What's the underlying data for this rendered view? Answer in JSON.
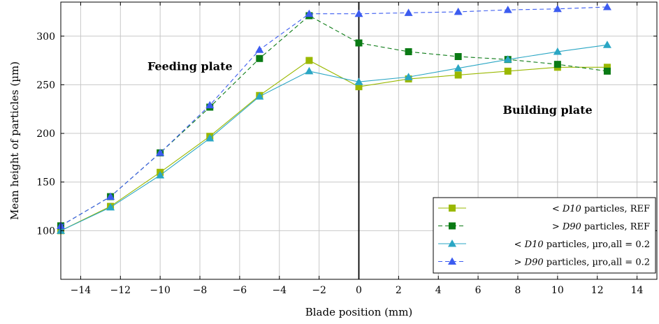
{
  "chart_data": {
    "type": "line",
    "xlabel": "Blade position (mm)",
    "ylabel": "Mean height of particles (µm)",
    "xlim": [
      -15,
      15
    ],
    "ylim": [
      50,
      335
    ],
    "xticks": [
      -14,
      -12,
      -10,
      -8,
      -6,
      -4,
      -2,
      0,
      2,
      4,
      6,
      8,
      10,
      12,
      14
    ],
    "yticks": [
      100,
      150,
      200,
      250,
      300
    ],
    "grid": true,
    "divider_x": 0,
    "legend_position": "bottom-right",
    "annotations": [
      {
        "text": "Feeding plate",
        "x": -8.5,
        "y": 265
      },
      {
        "text": "Building plate",
        "x": 9.5,
        "y": 220
      }
    ],
    "series": [
      {
        "name": "< D10 particles, REF",
        "legend_prefix": "<",
        "legend_sym": "D10",
        "legend_rest": "particles, REF",
        "color": "#9ab800",
        "dash": "none",
        "marker": "square",
        "x": [
          -15,
          -12.5,
          -10,
          -7.5,
          -5,
          -2.5,
          0,
          2.5,
          5,
          7.5,
          10,
          12.5
        ],
        "y": [
          100,
          125,
          160,
          197,
          239,
          275,
          248,
          256,
          260,
          264,
          268,
          268
        ]
      },
      {
        "name": "> D90 particles, REF",
        "legend_prefix": ">",
        "legend_sym": "D90",
        "legend_rest": "particles, REF",
        "color": "#0a7a14",
        "dash": "6,4",
        "marker": "square",
        "x": [
          -15,
          -12.5,
          -10,
          -7.5,
          -5,
          -2.5,
          0,
          2.5,
          5,
          7.5,
          10,
          12.5
        ],
        "y": [
          105,
          135,
          180,
          227,
          277,
          321,
          293,
          284,
          279,
          276,
          271,
          264
        ]
      },
      {
        "name": "< D10 particles, µro,all = 0.2",
        "legend_prefix": "<",
        "legend_sym": "D10",
        "legend_rest": "particles, µro,all = 0.2",
        "color": "#2aa6c4",
        "dash": "none",
        "marker": "triangle",
        "x": [
          -15,
          -12.5,
          -10,
          -7.5,
          -5,
          -2.5,
          0,
          2.5,
          5,
          7.5,
          10,
          12.5
        ],
        "y": [
          100,
          124,
          157,
          195,
          238,
          264,
          253,
          258,
          267,
          276,
          284,
          291
        ]
      },
      {
        "name": "> D90 particles, µro,all = 0.2",
        "legend_prefix": ">",
        "legend_sym": "D90",
        "legend_rest": "particles, µro,all = 0.2",
        "color": "#3c5cf0",
        "dash": "6,4",
        "marker": "triangle",
        "x": [
          -15,
          -12.5,
          -10,
          -7.5,
          -5,
          -2.5,
          0,
          2.5,
          5,
          7.5,
          10,
          12.5
        ],
        "y": [
          105,
          135,
          180,
          229,
          286,
          323,
          323,
          324,
          325,
          327,
          328,
          330
        ]
      }
    ]
  }
}
